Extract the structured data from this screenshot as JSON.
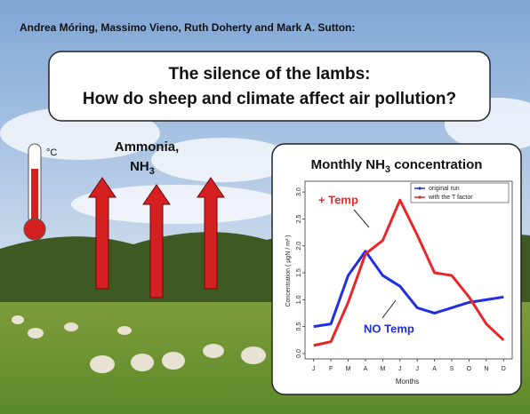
{
  "authors": "Andrea Móring, Massimo Vieno, Ruth Doherty and Mark A. Sutton:",
  "title": [
    "The silence of the lambs:",
    "How do sheep and climate affect air pollution?"
  ],
  "thermometer_unit": "°C",
  "gas_label": {
    "line1": "Ammonia,",
    "formula": "NH",
    "subscript": "3"
  },
  "chart_data": {
    "type": "line",
    "title": {
      "text": "Monthly NH",
      "subscript": "3",
      "rest": " concentration"
    },
    "x_label": "Months",
    "y_label": "Concentration ( μgN / m³ )",
    "categories": [
      "J",
      "F",
      "M",
      "A",
      "M",
      "J",
      "J",
      "A",
      "S",
      "O",
      "N",
      "D"
    ],
    "series": [
      {
        "name": "original run",
        "color": "#1f2fe0",
        "values": [
          0.5,
          0.55,
          1.45,
          1.9,
          1.45,
          1.25,
          0.85,
          0.75,
          0.85,
          0.95,
          1.0,
          1.05
        ]
      },
      {
        "name": "with the T factor",
        "color": "#e8262a",
        "values": [
          0.15,
          0.22,
          0.95,
          1.85,
          2.1,
          2.85,
          2.2,
          1.5,
          1.45,
          1.05,
          0.55,
          0.25
        ]
      }
    ],
    "ylim": [
      -0.1,
      3.2
    ],
    "yticks": [
      {
        "value": 0,
        "label": "0.0"
      },
      {
        "value": 0.5,
        "label": "0.5"
      },
      {
        "value": 1,
        "label": "1.0"
      },
      {
        "value": 1.5,
        "label": "1.5"
      },
      {
        "value": 2,
        "label": "2.0"
      },
      {
        "value": 2.5,
        "label": "2.5"
      },
      {
        "value": 3,
        "label": "3.0"
      }
    ],
    "legend": "top-right",
    "annotations": [
      "+ Temp",
      "NO Temp"
    ]
  }
}
